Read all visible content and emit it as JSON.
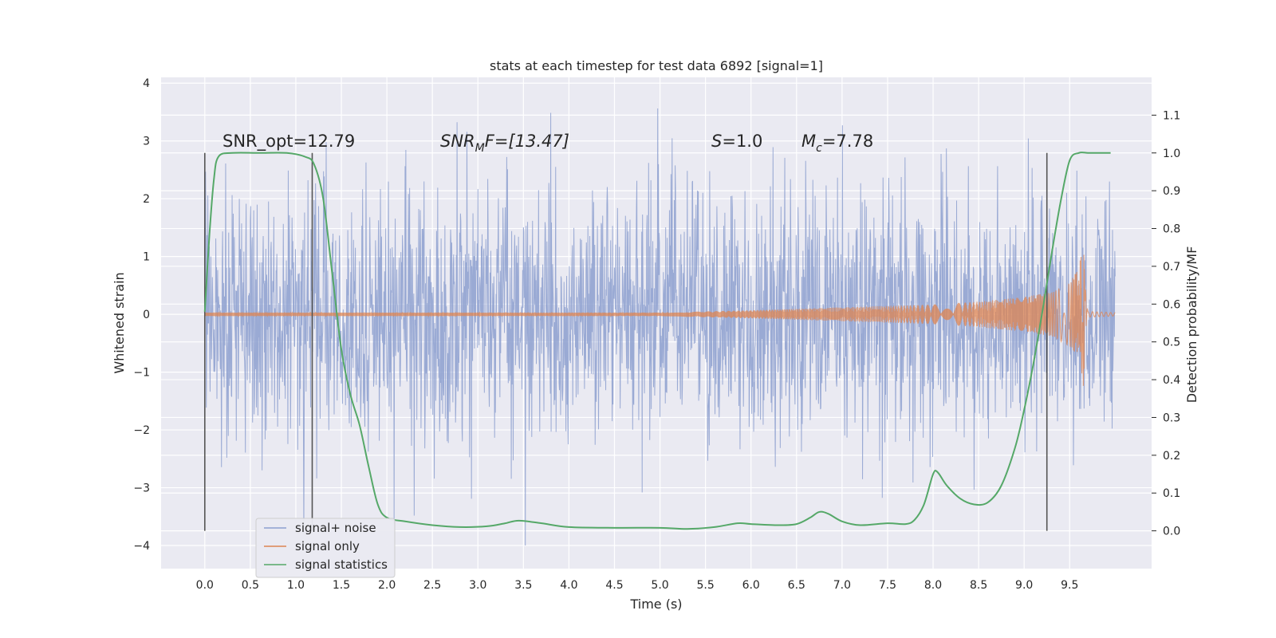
{
  "chart_data": {
    "type": "line",
    "title": "stats at each timestep for test data 6892 [signal=1]",
    "xlabel": "Time (s)",
    "ylabel": "Whitened strain",
    "y2label": "Detection probability/MF",
    "xlim": [
      -0.48,
      10.4
    ],
    "ylim": [
      -4.4,
      4.1
    ],
    "y2lim": [
      -0.1,
      1.2
    ],
    "x_ticks": [
      "0.0",
      "0.5",
      "1.0",
      "1.5",
      "2.0",
      "2.5",
      "3.0",
      "3.5",
      "4.0",
      "4.5",
      "5.0",
      "5.5",
      "6.0",
      "6.5",
      "7.0",
      "7.5",
      "8.0",
      "8.5",
      "9.0",
      "9.5"
    ],
    "y_ticks": [
      "4",
      "3",
      "2",
      "1",
      "0",
      "−1",
      "−2",
      "−3",
      "−4"
    ],
    "y2_ticks": [
      "1.1",
      "1.0",
      "0.9",
      "0.8",
      "0.7",
      "0.6",
      "0.5",
      "0.4",
      "0.3",
      "0.2",
      "0.1",
      "0.0"
    ],
    "grid": true,
    "legend_position": "lower-left",
    "colors": {
      "noise": "#8c9fcf",
      "signal": "#dd8452",
      "stats": "#55a868",
      "vlines": "#555555",
      "background": "#eaeaf2"
    },
    "series": [
      {
        "name": "signal+ noise",
        "axis": "left",
        "description_range": {
          "x": [
            0.0,
            10.0
          ],
          "y": [
            -4.0,
            3.7
          ]
        }
      },
      {
        "name": "signal only",
        "axis": "left",
        "envelope": {
          "x": [
            0.0,
            5.0,
            5.5,
            6.0,
            7.0,
            8.0,
            8.5,
            9.0,
            9.3,
            9.5,
            9.6,
            9.65,
            9.68,
            9.7,
            10.0
          ],
          "amp": [
            0.03,
            0.03,
            0.05,
            0.07,
            0.12,
            0.17,
            0.22,
            0.3,
            0.38,
            0.55,
            0.8,
            1.25,
            0.3,
            0.05,
            0.03
          ]
        }
      },
      {
        "name": "signal statistics",
        "axis": "right",
        "x": [
          0.0,
          0.05,
          0.1,
          0.15,
          0.3,
          0.6,
          0.9,
          1.1,
          1.2,
          1.3,
          1.4,
          1.5,
          1.6,
          1.7,
          1.8,
          1.9,
          2.0,
          2.2,
          2.5,
          2.8,
          3.1,
          3.3,
          3.45,
          3.7,
          4.0,
          4.5,
          5.0,
          5.3,
          5.6,
          5.85,
          6.0,
          6.3,
          6.5,
          6.65,
          6.75,
          6.85,
          7.0,
          7.2,
          7.5,
          7.7,
          7.8,
          7.9,
          8.0,
          8.05,
          8.15,
          8.3,
          8.45,
          8.6,
          8.75,
          8.9,
          9.0,
          9.1,
          9.2,
          9.3,
          9.4,
          9.5,
          9.6,
          9.7,
          9.8,
          9.95
        ],
        "y": [
          0.58,
          0.78,
          0.93,
          0.99,
          1.0,
          1.0,
          1.0,
          0.99,
          0.97,
          0.88,
          0.68,
          0.48,
          0.36,
          0.28,
          0.17,
          0.07,
          0.035,
          0.025,
          0.015,
          0.01,
          0.012,
          0.02,
          0.027,
          0.02,
          0.01,
          0.008,
          0.008,
          0.005,
          0.01,
          0.02,
          0.018,
          0.015,
          0.018,
          0.035,
          0.05,
          0.045,
          0.025,
          0.015,
          0.02,
          0.018,
          0.03,
          0.07,
          0.15,
          0.155,
          0.12,
          0.085,
          0.07,
          0.075,
          0.12,
          0.22,
          0.32,
          0.44,
          0.58,
          0.73,
          0.87,
          0.98,
          1.0,
          1.0,
          1.0,
          1.0
        ]
      }
    ],
    "vertical_lines_x": [
      0.0,
      1.18,
      9.25
    ],
    "annotations": {
      "snr_opt": "SNR_opt=12.79",
      "snr_mf_var": "SNR",
      "snr_mf_sub": "M",
      "snr_mf_rest": "F=[13.47]",
      "s_var": "S",
      "s_rest": "=1.0",
      "mc_var": "M",
      "mc_sub": "c",
      "mc_rest": "=7.78"
    }
  }
}
